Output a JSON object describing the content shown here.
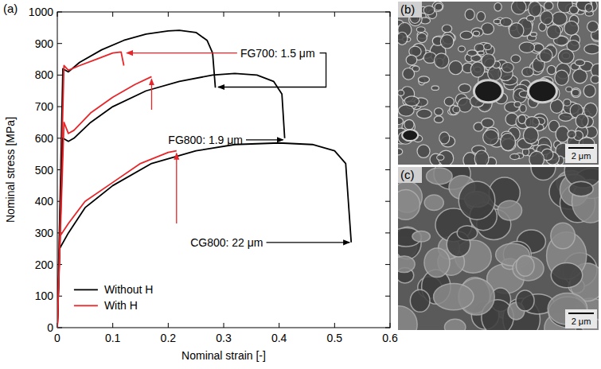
{
  "chart_data": {
    "type": "line",
    "panel_label": "(a)",
    "x_label": "Nominal strain [-]",
    "y_label": "Nominal stress [MPa]",
    "xlim": [
      0,
      0.6
    ],
    "xticks": [
      0,
      0.1,
      0.2,
      0.3,
      0.4,
      0.5,
      0.6
    ],
    "ylim": [
      0,
      1000
    ],
    "yticks": [
      0,
      100,
      200,
      300,
      400,
      500,
      600,
      700,
      800,
      900,
      1000
    ],
    "grid": false,
    "legend": "lower left",
    "series": [
      {
        "name": "Without H",
        "color": "#000000",
        "line_style": "solid",
        "x": [
          0,
          0.01,
          0.02,
          0.04,
          0.08,
          0.12,
          0.16,
          0.2,
          0.22,
          0.25,
          0.27,
          0.28,
          0.285
        ],
        "values": [
          0,
          820,
          810,
          840,
          880,
          910,
          930,
          940,
          942,
          935,
          910,
          870,
          760
        ]
      },
      {
        "name": "With H",
        "color": "#e8262a",
        "line_style": "solid",
        "x": [
          0,
          0.012,
          0.02,
          0.04,
          0.07,
          0.1,
          0.115,
          0.12
        ],
        "values": [
          0,
          830,
          815,
          830,
          850,
          870,
          873,
          830
        ]
      },
      {
        "name": "Without H",
        "color": "#000000",
        "line_style": "solid",
        "x": [
          0,
          0.01,
          0.02,
          0.03,
          0.06,
          0.1,
          0.16,
          0.22,
          0.28,
          0.32,
          0.36,
          0.39,
          0.405,
          0.41
        ],
        "values": [
          0,
          600,
          590,
          600,
          650,
          700,
          750,
          780,
          800,
          805,
          800,
          780,
          740,
          600
        ]
      },
      {
        "name": "With H",
        "color": "#e8262a",
        "line_style": "solid",
        "x": [
          0,
          0.012,
          0.02,
          0.03,
          0.06,
          0.1,
          0.14,
          0.17
        ],
        "values": [
          0,
          650,
          615,
          625,
          680,
          730,
          770,
          795
        ]
      },
      {
        "name": "Without H",
        "color": "#000000",
        "line_style": "solid",
        "x": [
          0,
          0.004,
          0.02,
          0.05,
          0.1,
          0.17,
          0.25,
          0.32,
          0.4,
          0.46,
          0.5,
          0.52,
          0.53
        ],
        "values": [
          0,
          250,
          300,
          380,
          450,
          520,
          560,
          580,
          585,
          580,
          560,
          520,
          270
        ]
      },
      {
        "name": "With H",
        "color": "#e8262a",
        "line_style": "solid",
        "x": [
          0,
          0.005,
          0.02,
          0.05,
          0.1,
          0.15,
          0.2,
          0.215
        ],
        "values": [
          0,
          290,
          330,
          400,
          460,
          520,
          555,
          560
        ]
      }
    ],
    "annotations": [
      "FG700: 1.5 μm",
      "FG800: 1.9 μm",
      "CG800: 22 μm"
    ]
  },
  "micrographs": [
    {
      "panel_label": "(b)",
      "scale_bar": "2 μm"
    },
    {
      "panel_label": "(c)",
      "scale_bar": "2 μm"
    }
  ]
}
